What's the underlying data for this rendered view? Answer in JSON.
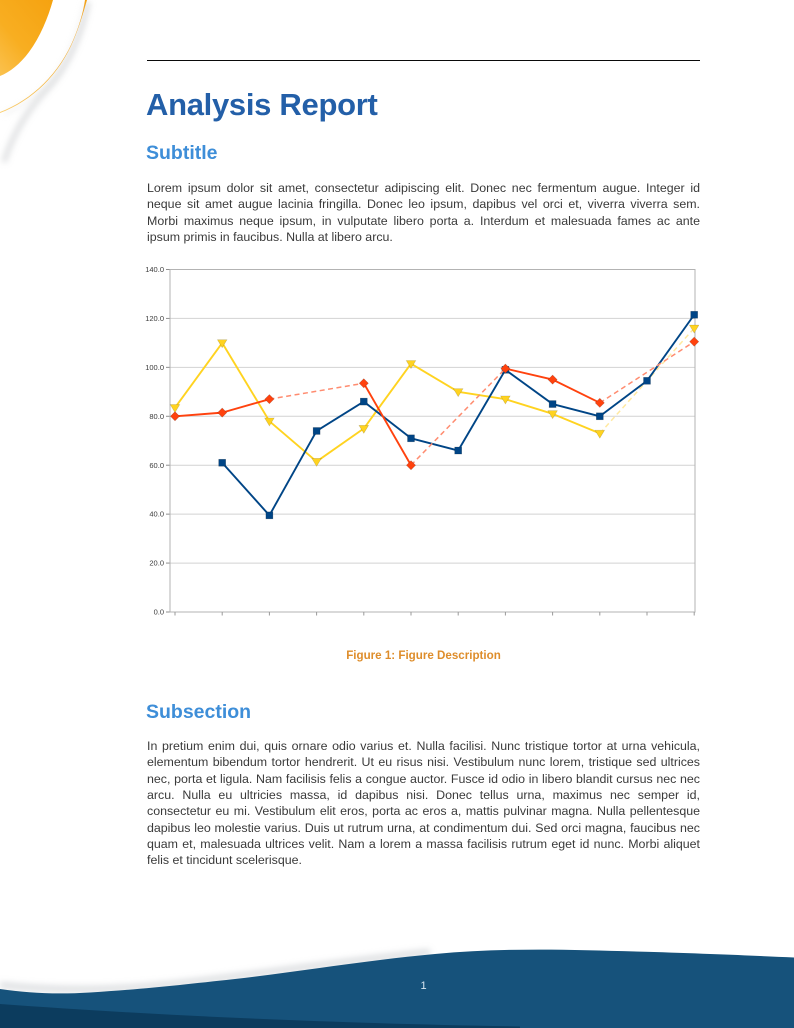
{
  "document": {
    "title": "Analysis Report",
    "subtitle": "Subtitle",
    "intro_paragraph": "Lorem ipsum dolor sit amet, consectetur adipiscing elit. Donec nec fermentum augue. Integer id neque sit amet augue lacinia fringilla. Donec leo ipsum, dapibus vel orci et, viverra viverra sem. Morbi maximus neque ipsum, in vulputate libero porta a. Interdum et malesuada fames ac ante ipsum primis in faucibus. Nulla at libero arcu.",
    "figure_caption": "Figure 1: Figure Description",
    "subsection_heading": "Subsection",
    "subsection_paragraph": "In pretium enim dui, quis ornare odio varius et. Nulla facilisi. Nunc tristique tortor at urna vehicula, elementum bibendum tortor hendrerit. Ut eu risus nisi. Vestibulum nunc lorem, tristique sed ultrices nec, porta et ligula. Nam facilisis felis a congue auctor. Fusce id odio in libero blandit cursus nec nec arcu. Nulla eu ultricies massa, id dapibus nisi. Donec tellus urna, maximus nec semper id, consectetur eu mi. Vestibulum elit eros, porta ac eros a, mattis pulvinar magna. Nulla pellentesque dapibus leo molestie varius. Duis ut rutrum urna, at condimentum dui. Sed orci magna, faucibus nec quam et, malesuada ultrices velit. Nam a lorem a massa facilisis rutrum eget id nunc. Morbi aliquet felis et tincidunt scelerisque.",
    "page_number": "1"
  },
  "colors": {
    "title_blue": "#235fa8",
    "heading_blue": "#3e8ed8",
    "caption_orange": "#de8d2b",
    "body_text": "#3a3a3a",
    "footer_blue": "#16527b",
    "footer_dark_blue": "#0c3c5e",
    "decoration_orange_deep": "#f49e0a",
    "decoration_orange_light": "#fccf6e"
  },
  "chart_data": {
    "type": "line",
    "x": [
      1,
      2,
      3,
      4,
      5,
      6,
      7,
      8,
      9,
      10,
      11,
      12
    ],
    "x_tick_labels": [
      "",
      "",
      "",
      "",
      "",
      "",
      "",
      "",
      "",
      "",
      "",
      ""
    ],
    "ylim": [
      0,
      140
    ],
    "ytick_interval": 20,
    "ytick_labels": [
      "0.0",
      "20.0",
      "40.0",
      "60.0",
      "80.0",
      "100.0",
      "120.0",
      "140.0"
    ],
    "grid": "horizontal",
    "legend": "none",
    "title": "",
    "xlabel": "",
    "ylabel": "",
    "gap_policy": "missing values (null) are bridged with lighter dashed segments",
    "series": [
      {
        "name": "yellow-series",
        "color": "#ffd320",
        "dash_color": "#ffe9a0",
        "marker": "triangle-down",
        "values": [
          83.5,
          110,
          78,
          61.5,
          75,
          101.5,
          90,
          87,
          81,
          73,
          null,
          116
        ]
      },
      {
        "name": "blue-series",
        "color": "#004586",
        "dash_color": "#7a99c9",
        "marker": "square",
        "values": [
          null,
          61,
          39.5,
          74,
          86,
          71,
          66,
          99,
          85,
          80,
          94.5,
          121.5
        ]
      },
      {
        "name": "red-series",
        "color": "#ff420e",
        "dash_color": "#ff8c70",
        "marker": "diamond",
        "values": [
          80,
          81.5,
          87,
          null,
          93.5,
          60,
          null,
          99.5,
          95,
          85.5,
          null,
          110.5
        ]
      }
    ]
  }
}
